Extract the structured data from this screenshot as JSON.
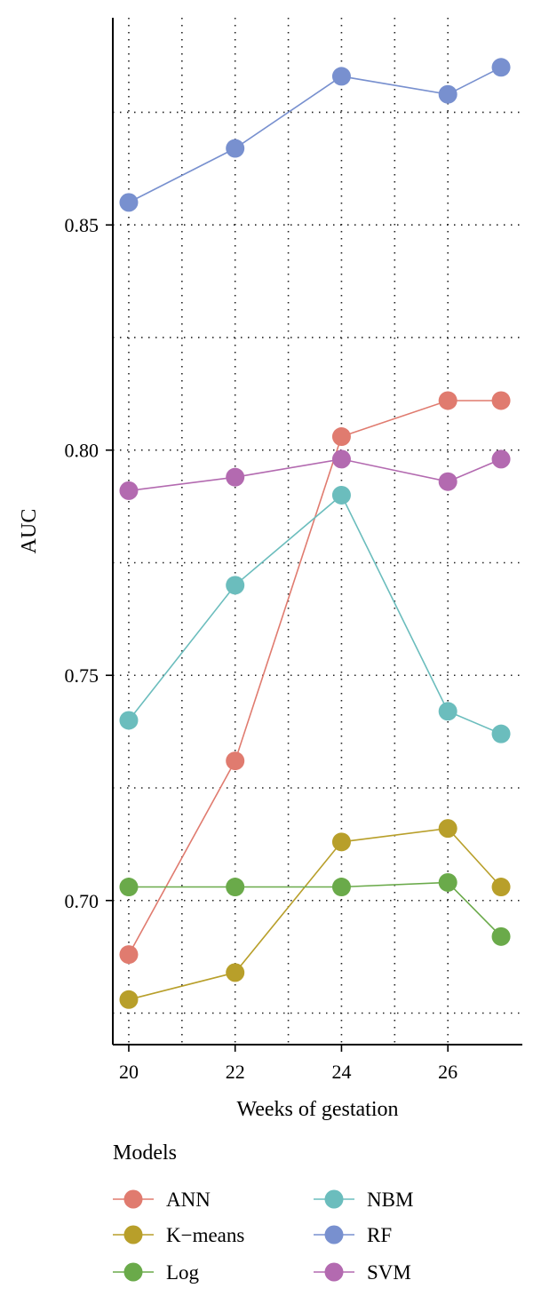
{
  "chart_data": {
    "type": "line",
    "xlabel": "Weeks of gestation",
    "ylabel": "AUC",
    "x": [
      20,
      22,
      24,
      26,
      27
    ],
    "x_ticks": [
      20,
      22,
      24,
      26
    ],
    "xlim": [
      19.7,
      27.4
    ],
    "y_ticks": [
      0.7,
      0.75,
      0.8,
      0.85
    ],
    "y_tick_labels": [
      "0.70",
      "0.75",
      "0.80",
      "0.85"
    ],
    "ylim": [
      0.668,
      0.896
    ],
    "grid": true,
    "legend_title": "Models",
    "legend_position": "bottom",
    "series": [
      {
        "name": "ANN",
        "color": "#E07B6F",
        "values": [
          0.688,
          0.731,
          0.803,
          0.811,
          0.811
        ]
      },
      {
        "name": "K−means",
        "color": "#B89F2A",
        "values": [
          0.678,
          0.684,
          0.713,
          0.716,
          0.703
        ]
      },
      {
        "name": "Log",
        "color": "#6AAA4A",
        "values": [
          0.703,
          0.703,
          0.703,
          0.704,
          0.692
        ]
      },
      {
        "name": "NBM",
        "color": "#6BBDBD",
        "values": [
          0.74,
          0.77,
          0.79,
          0.742,
          0.737
        ]
      },
      {
        "name": "RF",
        "color": "#7890CF",
        "values": [
          0.855,
          0.867,
          0.883,
          0.879,
          0.885
        ]
      },
      {
        "name": "SVM",
        "color": "#B36AB0",
        "values": [
          0.791,
          0.794,
          0.798,
          0.793,
          0.798
        ]
      }
    ]
  }
}
